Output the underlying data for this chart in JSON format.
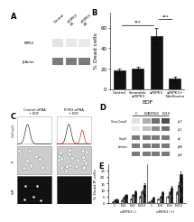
{
  "panel_b": {
    "categories": [
      "Control",
      "Scramble\nsiRIPK3",
      "siRIPK3",
      "siRIPK3+\nEdelfosine"
    ],
    "values": [
      18,
      20,
      52,
      10
    ],
    "errors": [
      2,
      2,
      8,
      2
    ],
    "bar_color": "#111111",
    "ylabel": "% Dead cells",
    "xlabel": "EDF",
    "ylim": [
      0,
      75
    ],
    "yticks": [
      0,
      20,
      40,
      60
    ]
  },
  "panel_e": {
    "xtick_labels": [
      "C",
      "Ed1",
      "Ed3",
      "Ed10",
      "C",
      "Ed1",
      "Ed3",
      "Ed10"
    ],
    "group_label_1": "siRIPK3 (-)",
    "group_label_2": "siRIPK3 (+)",
    "values_white": [
      1,
      2,
      3,
      5,
      1,
      3,
      5,
      8
    ],
    "values_gray": [
      2,
      4,
      6,
      9,
      2,
      5,
      8,
      14
    ],
    "values_hatch": [
      3,
      6,
      9,
      14,
      4,
      8,
      12,
      22
    ],
    "errors_white": [
      0.3,
      0.4,
      0.5,
      0.8,
      0.3,
      0.5,
      0.7,
      1.2
    ],
    "errors_gray": [
      0.4,
      0.6,
      0.8,
      1.2,
      0.4,
      0.7,
      1.0,
      1.8
    ],
    "errors_hatch": [
      0.5,
      0.8,
      1.0,
      1.5,
      0.5,
      0.9,
      1.3,
      2.5
    ],
    "ylabel": "% Dead-PI cells",
    "ylim": [
      0,
      30
    ],
    "yticks": [
      0,
      5,
      10,
      15,
      20,
      25
    ]
  },
  "panel_a": {
    "label": "A",
    "band1_label": "RIPK3",
    "band2_label": "β-Actin",
    "col_labels": [
      "Control",
      "siRIPK3\n#1",
      "siRIPK3\n#2"
    ]
  },
  "panel_c": {
    "label": "C",
    "col1_label": "Control siRNA\n+ EDF",
    "col2_label": "RIPK3 siRNA\n+ EDF",
    "row_labels": [
      "Cell cycle",
      "PI",
      "CaM"
    ]
  },
  "panel_d": {
    "label": "D",
    "lane_labels": [
      "C",
      "Ed1",
      "Ed3",
      "Ed10"
    ],
    "row_labels": [
      "Cleav.Casp3",
      "Casp3",
      "Lamins"
    ],
    "group_label": "EDF"
  },
  "background": "#ffffff",
  "panel_label_fontsize": 6,
  "axis_fontsize": 4.5,
  "tick_fontsize": 4
}
